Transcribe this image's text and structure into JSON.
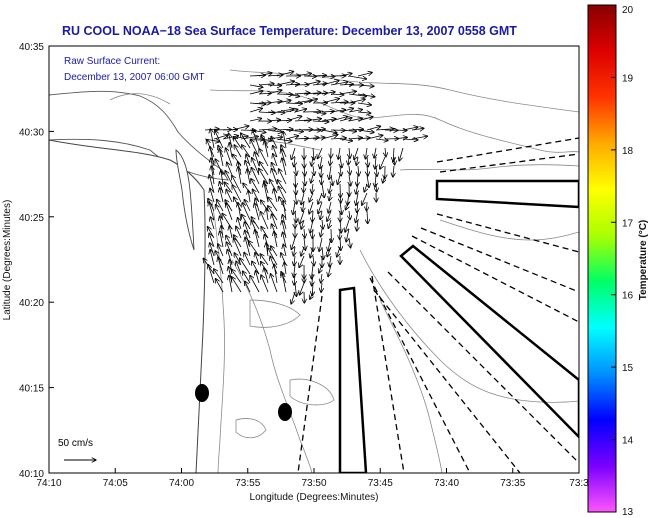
{
  "title": "RU COOL  NOAA−18  Sea Surface Temperature:  December 13, 2007 0558 GMT",
  "inset": {
    "line1": "Raw Surface Current:",
    "line2": "December 13, 2007 06:00 GMT"
  },
  "scale_label": "50 cm/s",
  "x_axis": {
    "label": "Longitude (Degrees:Minutes)",
    "ticks": [
      "74:10",
      "74:05",
      "74:00",
      "73:55",
      "73:50",
      "73:45",
      "73:40",
      "73:35",
      "73:3"
    ]
  },
  "y_axis": {
    "label": "Latitude (Degrees:Minutes)",
    "ticks": [
      "40:35",
      "40:30",
      "40:25",
      "40:20",
      "40:15",
      "40:10"
    ]
  },
  "colorbar": {
    "label": "Temperature (°C)",
    "min": 13,
    "max": 20,
    "ticks": [
      "20",
      "19",
      "18",
      "17",
      "16",
      "15",
      "14",
      "13"
    ],
    "colors": [
      "#ff55ff",
      "#7a00ff",
      "#0000ff",
      "#0090ff",
      "#00ffff",
      "#00ff66",
      "#aaff00",
      "#ffff00",
      "#ffaa00",
      "#ff3300",
      "#dd0000",
      "#880000"
    ]
  },
  "colors": {
    "title": "#1a1aa6",
    "land_fill": "#ffffff",
    "contour": "#8a8a8a"
  }
}
